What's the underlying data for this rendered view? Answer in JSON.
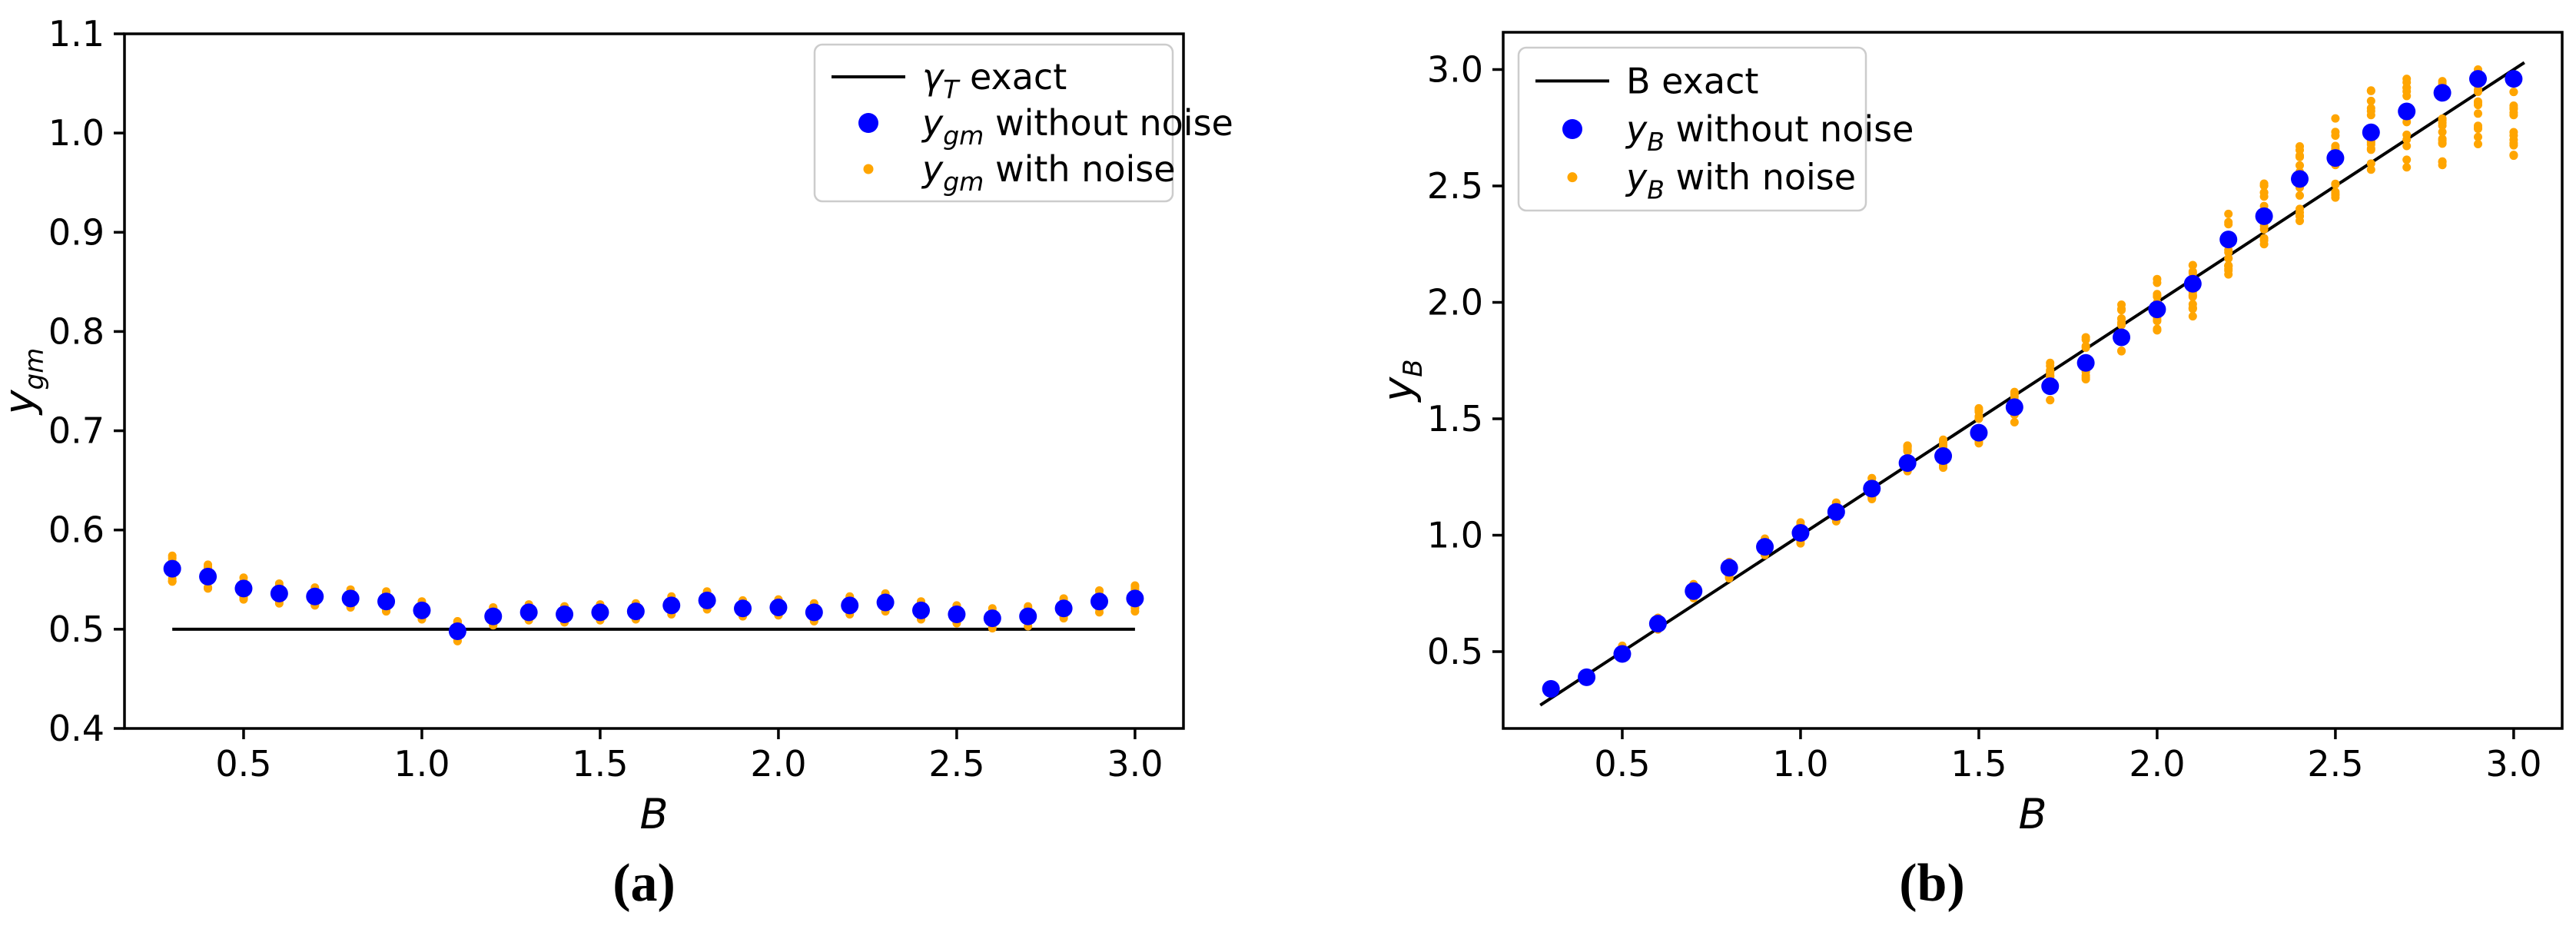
{
  "figure": {
    "background": "#ffffff",
    "captions": {
      "a": "(a)",
      "b": "(b)"
    }
  },
  "chart_data": [
    {
      "type": "scatter",
      "panel": "a",
      "caption": "(a)",
      "xlabel": "B",
      "xlabel_italic": true,
      "ylabel_parts": [
        {
          "t": "y",
          "it": 1
        },
        {
          "t": "gm",
          "it": 1,
          "sub": 1
        }
      ],
      "xlim": [
        0.166,
        3.136
      ],
      "ylim": [
        0.4,
        1.1
      ],
      "grid": false,
      "x_ticks": [
        0.5,
        1.0,
        1.5,
        2.0,
        2.5,
        3.0
      ],
      "x_tick_labels": [
        "0.5",
        "1.0",
        "1.5",
        "2.0",
        "2.5",
        "3.0"
      ],
      "y_ticks": [
        0.4,
        0.5,
        0.6,
        0.7,
        0.8,
        0.9,
        1.0,
        1.1
      ],
      "y_tick_labels": [
        "0.4",
        "0.5",
        "0.6",
        "0.7",
        "0.8",
        "0.9",
        "1.0",
        "1.1"
      ],
      "legend": {
        "position": "upper right",
        "items": [
          {
            "marker": "line",
            "color": "#000000",
            "label_parts": [
              {
                "t": "γ",
                "it": 1
              },
              {
                "t": "T",
                "it": 1,
                "sub": 1
              },
              {
                "t": " exact"
              }
            ]
          },
          {
            "marker": "dot-large",
            "color": "#0000ff",
            "label_parts": [
              {
                "t": "y",
                "it": 1
              },
              {
                "t": "gm",
                "it": 1,
                "sub": 1
              },
              {
                "t": " without noise"
              }
            ]
          },
          {
            "marker": "dot-small",
            "color": "#ffa500",
            "label_parts": [
              {
                "t": "y",
                "it": 1
              },
              {
                "t": "gm",
                "it": 1,
                "sub": 1
              },
              {
                "t": " with noise"
              }
            ]
          }
        ]
      },
      "series": [
        {
          "name": "gamma_T exact",
          "kind": "line",
          "color": "#000000",
          "width": 4,
          "x": [
            0.3,
            3.0
          ],
          "y": [
            0.5,
            0.5
          ]
        },
        {
          "name": "y_gm without noise",
          "kind": "scatter",
          "color": "#0000ff",
          "radius": 11.5,
          "x": [
            0.3,
            0.4,
            0.5,
            0.6,
            0.7,
            0.8,
            0.9,
            1.0,
            1.1,
            1.2,
            1.3,
            1.4,
            1.5,
            1.6,
            1.7,
            1.8,
            1.9,
            2.0,
            2.1,
            2.2,
            2.3,
            2.4,
            2.5,
            2.6,
            2.7,
            2.8,
            2.9,
            3.0
          ],
          "y": [
            0.561,
            0.553,
            0.541,
            0.536,
            0.533,
            0.531,
            0.528,
            0.519,
            0.498,
            0.513,
            0.517,
            0.515,
            0.517,
            0.518,
            0.524,
            0.529,
            0.521,
            0.522,
            0.517,
            0.524,
            0.527,
            0.519,
            0.515,
            0.511,
            0.513,
            0.521,
            0.528,
            0.531
          ]
        },
        {
          "name": "y_gm with noise",
          "kind": "noise-scatter",
          "color": "#ffa500",
          "radius": 5.5,
          "points_per_x": 12,
          "x": [
            0.3,
            0.4,
            0.5,
            0.6,
            0.7,
            0.8,
            0.9,
            1.0,
            1.1,
            1.2,
            1.3,
            1.4,
            1.5,
            1.6,
            1.7,
            1.8,
            1.9,
            2.0,
            2.1,
            2.2,
            2.3,
            2.4,
            2.5,
            2.6,
            2.7,
            2.8,
            2.9,
            3.0
          ],
          "centers": [
            0.561,
            0.553,
            0.541,
            0.536,
            0.533,
            0.531,
            0.528,
            0.519,
            0.498,
            0.513,
            0.517,
            0.515,
            0.517,
            0.518,
            0.524,
            0.529,
            0.521,
            0.522,
            0.517,
            0.524,
            0.527,
            0.519,
            0.515,
            0.511,
            0.513,
            0.521,
            0.528,
            0.531
          ],
          "half_spreads": [
            0.013,
            0.012,
            0.011,
            0.01,
            0.009,
            0.009,
            0.01,
            0.009,
            0.01,
            0.009,
            0.008,
            0.008,
            0.008,
            0.008,
            0.009,
            0.009,
            0.008,
            0.008,
            0.009,
            0.009,
            0.009,
            0.009,
            0.009,
            0.01,
            0.01,
            0.01,
            0.011,
            0.013
          ]
        }
      ]
    },
    {
      "type": "scatter",
      "panel": "b",
      "caption": "(b)",
      "xlabel": "B",
      "xlabel_italic": true,
      "ylabel_parts": [
        {
          "t": "y",
          "it": 1
        },
        {
          "t": "B",
          "it": 1,
          "sub": 1
        }
      ],
      "xlim": [
        0.166,
        3.136
      ],
      "ylim": [
        0.17,
        3.16
      ],
      "grid": false,
      "x_ticks": [
        0.5,
        1.0,
        1.5,
        2.0,
        2.5,
        3.0
      ],
      "x_tick_labels": [
        "0.5",
        "1.0",
        "1.5",
        "2.0",
        "2.5",
        "3.0"
      ],
      "y_ticks": [
        0.5,
        1.0,
        1.5,
        2.0,
        2.5,
        3.0
      ],
      "y_tick_labels": [
        "0.5",
        "1.0",
        "1.5",
        "2.0",
        "2.5",
        "3.0"
      ],
      "legend": {
        "position": "upper left",
        "items": [
          {
            "marker": "line",
            "color": "#000000",
            "label_parts": [
              {
                "t": "B exact"
              }
            ]
          },
          {
            "marker": "dot-large",
            "color": "#0000ff",
            "label_parts": [
              {
                "t": "y",
                "it": 1
              },
              {
                "t": "B",
                "it": 1,
                "sub": 1
              },
              {
                "t": " without noise"
              }
            ]
          },
          {
            "marker": "dot-small",
            "color": "#ffa500",
            "label_parts": [
              {
                "t": "y",
                "it": 1
              },
              {
                "t": "B",
                "it": 1,
                "sub": 1
              },
              {
                "t": " with noise"
              }
            ]
          }
        ]
      },
      "series": [
        {
          "name": "B exact",
          "kind": "line",
          "color": "#000000",
          "width": 4,
          "x": [
            0.27,
            3.03
          ],
          "y": [
            0.27,
            3.03
          ]
        },
        {
          "name": "y_B without noise",
          "kind": "scatter",
          "color": "#0000ff",
          "radius": 11.5,
          "x": [
            0.3,
            0.4,
            0.5,
            0.6,
            0.7,
            0.8,
            0.9,
            1.0,
            1.1,
            1.2,
            1.3,
            1.4,
            1.5,
            1.6,
            1.7,
            1.8,
            1.9,
            2.0,
            2.1,
            2.2,
            2.3,
            2.4,
            2.5,
            2.6,
            2.7,
            2.8,
            2.9,
            3.0
          ],
          "y": [
            0.34,
            0.39,
            0.49,
            0.62,
            0.76,
            0.86,
            0.95,
            1.01,
            1.1,
            1.2,
            1.31,
            1.34,
            1.44,
            1.55,
            1.64,
            1.74,
            1.85,
            1.97,
            2.08,
            2.27,
            2.37,
            2.53,
            2.62,
            2.73,
            2.82,
            2.9,
            2.96,
            2.96
          ]
        },
        {
          "name": "y_B with noise",
          "kind": "noise-scatter",
          "color": "#ffa500",
          "radius": 5.5,
          "points_per_x": 16,
          "x": [
            0.3,
            0.4,
            0.5,
            0.6,
            0.7,
            0.8,
            0.9,
            1.0,
            1.1,
            1.2,
            1.3,
            1.4,
            1.5,
            1.6,
            1.7,
            1.8,
            1.9,
            2.0,
            2.1,
            2.2,
            2.3,
            2.4,
            2.5,
            2.6,
            2.7,
            2.8,
            2.9,
            3.0
          ],
          "centers": [
            0.34,
            0.39,
            0.5,
            0.62,
            0.76,
            0.85,
            0.95,
            1.01,
            1.1,
            1.2,
            1.33,
            1.35,
            1.47,
            1.55,
            1.66,
            1.76,
            1.89,
            1.99,
            2.05,
            2.25,
            2.38,
            2.51,
            2.62,
            2.74,
            2.77,
            2.77,
            2.84,
            2.79
          ],
          "half_spreads": [
            0.015,
            0.015,
            0.025,
            0.025,
            0.03,
            0.035,
            0.035,
            0.045,
            0.04,
            0.045,
            0.055,
            0.06,
            0.075,
            0.065,
            0.08,
            0.09,
            0.1,
            0.11,
            0.11,
            0.13,
            0.13,
            0.16,
            0.17,
            0.17,
            0.19,
            0.18,
            0.16,
            0.16
          ]
        }
      ]
    }
  ]
}
